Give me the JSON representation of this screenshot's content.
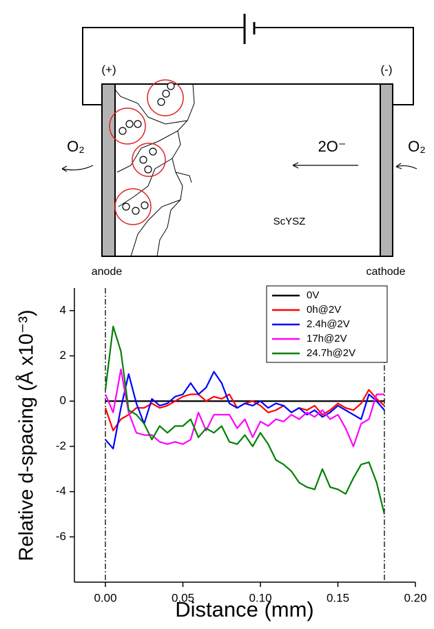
{
  "diagram": {
    "anode_sign": "(+)",
    "cathode_sign": "(-)",
    "left_gas": "O₂",
    "right_gas": "O₂",
    "ion": "2O⁻",
    "material": "ScYSZ",
    "anode": "anode",
    "cathode": "cathode"
  },
  "chart_data": {
    "type": "line",
    "x_label": "Distance (mm)",
    "y_label": "Relative d-spacing (Å x10⁻³)",
    "xlim": [
      -0.02,
      0.2
    ],
    "ylim": [
      -8,
      5
    ],
    "xticks": [
      {
        "value": 0,
        "label": "0.00"
      },
      {
        "value": 0.05,
        "label": "0.05"
      },
      {
        "value": 0.1,
        "label": "0.10"
      },
      {
        "value": 0.15,
        "label": "0.15"
      },
      {
        "value": 0.2,
        "label": "0.20"
      }
    ],
    "yticks": [
      -6,
      -4,
      -2,
      0,
      2,
      4
    ],
    "vlines": [
      0,
      0.18
    ],
    "legend": "upper right",
    "x": [
      0,
      0.005,
      0.01,
      0.015,
      0.02,
      0.025,
      0.03,
      0.035,
      0.04,
      0.045,
      0.05,
      0.055,
      0.06,
      0.065,
      0.07,
      0.075,
      0.08,
      0.085,
      0.09,
      0.095,
      0.1,
      0.105,
      0.11,
      0.115,
      0.12,
      0.125,
      0.13,
      0.135,
      0.14,
      0.145,
      0.15,
      0.155,
      0.16,
      0.165,
      0.17,
      0.175,
      0.18
    ],
    "series": [
      {
        "name": "0V",
        "color": "#000000",
        "values": [
          0,
          0,
          0,
          0,
          0,
          0,
          0,
          0,
          0,
          0,
          0,
          0,
          0,
          0,
          0,
          0,
          0,
          0,
          0,
          0,
          0,
          0,
          0,
          0,
          0,
          0,
          0,
          0,
          0,
          0,
          0,
          0,
          0,
          0,
          0,
          0,
          0
        ]
      },
      {
        "name": "0h@2V",
        "color": "#ff0000",
        "values": [
          -0.3,
          -1.3,
          -0.8,
          -0.6,
          -0.3,
          -0.3,
          -0.1,
          -0.3,
          -0.2,
          0,
          0.2,
          0.3,
          0.3,
          0,
          0.2,
          0.1,
          0.3,
          -0.3,
          -0.1,
          0,
          -0.2,
          -0.5,
          -0.4,
          -0.2,
          -0.5,
          -0.3,
          -0.4,
          -0.2,
          -0.6,
          -0.4,
          -0.1,
          -0.3,
          -0.4,
          -0.1,
          0.5,
          0.1,
          -0.2
        ]
      },
      {
        "name": "2.4h@2V",
        "color": "#0000ff",
        "values": [
          -1.7,
          -2.1,
          -0.3,
          1.2,
          -0.1,
          -1.0,
          0.1,
          -0.2,
          -0.1,
          0.2,
          0.3,
          0.8,
          0.3,
          0.6,
          1.3,
          0.8,
          -0.1,
          -0.3,
          -0.1,
          -0.2,
          0,
          -0.3,
          -0.1,
          -0.2,
          -0.5,
          -0.3,
          -0.6,
          -0.4,
          -0.7,
          -0.5,
          -0.2,
          -0.4,
          -0.6,
          -0.8,
          0.3,
          0.0,
          -0.4
        ]
      },
      {
        "name": "17h@2V",
        "color": "#ff00ff",
        "values": [
          0.3,
          -0.5,
          1.4,
          -0.5,
          -1.4,
          -1.5,
          -1.5,
          -1.8,
          -1.9,
          -1.8,
          -1.9,
          -1.7,
          -0.5,
          -1.3,
          -0.6,
          -0.6,
          -0.6,
          -1.2,
          -0.8,
          -1.6,
          -0.9,
          -1.1,
          -0.8,
          -0.9,
          -0.6,
          -0.8,
          -0.5,
          -0.7,
          -0.4,
          -0.8,
          -0.6,
          -1.2,
          -2.0,
          -1.0,
          -0.8,
          0.3,
          0.3
        ]
      },
      {
        "name": "24.7h@2V",
        "color": "#008000",
        "values": [
          0.5,
          3.3,
          2.2,
          -0.4,
          -0.6,
          -1.0,
          -1.7,
          -1.1,
          -1.4,
          -1.1,
          -1.1,
          -0.8,
          -1.6,
          -1.2,
          -1.4,
          -1.1,
          -1.8,
          -1.9,
          -1.5,
          -2.0,
          -1.4,
          -1.9,
          -2.6,
          -2.8,
          -3.1,
          -3.6,
          -3.8,
          -3.9,
          -3.0,
          -3.8,
          -3.9,
          -4.1,
          -3.4,
          -2.8,
          -2.7,
          -3.6,
          -5.0
        ]
      }
    ]
  }
}
